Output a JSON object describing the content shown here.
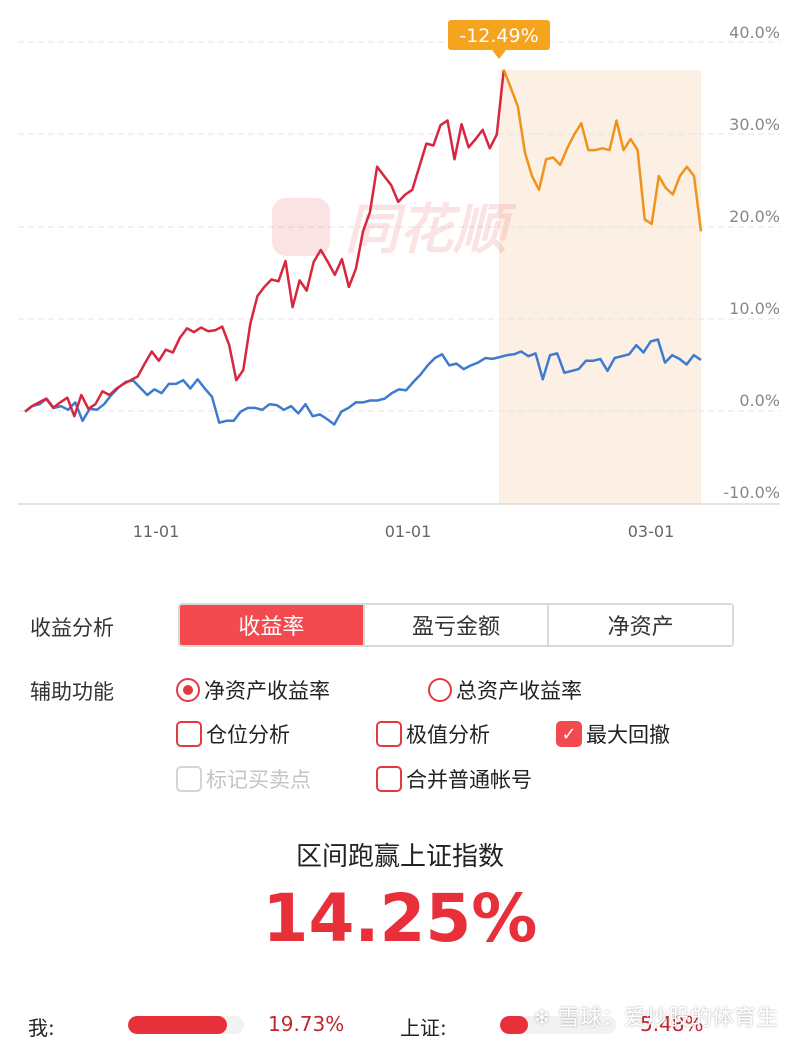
{
  "chart_data": {
    "type": "line",
    "watermark": "同花顺",
    "y_ticks": [
      "40.0%",
      "30.0%",
      "20.0%",
      "10.0%",
      "0.0%",
      "-10.0%"
    ],
    "ylim": [
      -10,
      40
    ],
    "x_ticks": [
      "11-01",
      "01-01",
      "03-01"
    ],
    "drawdown_badge": "-12.49%",
    "series": [
      {
        "color": "#d7263d",
        "values": [
          0.0,
          0.6,
          1.0,
          1.4,
          0.4,
          1.0,
          1.5,
          -0.5,
          1.8,
          0.3,
          0.8,
          2.2,
          1.8,
          2.5,
          3.0,
          3.4,
          3.8,
          5.2,
          6.5,
          5.5,
          6.7,
          6.4,
          8.0,
          9.0,
          8.6,
          9.1,
          8.7,
          8.8,
          9.2,
          7.2,
          3.4,
          4.5,
          9.5,
          12.5,
          13.5,
          14.3,
          14.1,
          16.3,
          11.3,
          14.2,
          13.1,
          16.2,
          17.5,
          16.2,
          14.8,
          16.5,
          13.5,
          15.5,
          19.5,
          21.6,
          26.5,
          25.5,
          24.5,
          22.7,
          23.5,
          24.0,
          26.5,
          29.0,
          28.8,
          31.0,
          31.5,
          27.3,
          31.1,
          28.6,
          29.5,
          30.5,
          28.5,
          30.0,
          37.0,
          35.0,
          33.0,
          28.0,
          25.5,
          24.0,
          27.3,
          27.5,
          26.7,
          28.5,
          30.0,
          31.2,
          28.3,
          28.3,
          28.5,
          28.3,
          31.5,
          28.3,
          29.5,
          28.3,
          20.8,
          20.3,
          25.5,
          24.2,
          23.5,
          25.5,
          26.5,
          25.5,
          19.5
        ]
      },
      {
        "color": "#3e7bd0",
        "values": [
          0.0,
          0.6,
          0.8,
          1.4,
          0.4,
          0.6,
          0.2,
          1.0,
          -1.0,
          0.3,
          0.2,
          0.8,
          1.8,
          2.6,
          3.2,
          3.4,
          2.6,
          1.8,
          2.4,
          2.0,
          3.0,
          3.0,
          3.4,
          2.5,
          3.5,
          2.5,
          1.6,
          -1.2,
          -1.0,
          -1.0,
          0.0,
          0.4,
          0.4,
          0.2,
          0.8,
          0.7,
          0.2,
          0.6,
          -0.2,
          0.8,
          -0.5,
          -0.3,
          -0.8,
          -1.4,
          0.0,
          0.4,
          1.0,
          1.0,
          1.2,
          1.2,
          1.4,
          2.0,
          2.4,
          2.3,
          3.2,
          4.0,
          5.0,
          5.8,
          6.2,
          5.0,
          5.2,
          4.6,
          5.0,
          5.3,
          5.8,
          5.7,
          5.9,
          6.1,
          6.2,
          6.5,
          6.0,
          6.3,
          3.5,
          6.1,
          6.3,
          4.2,
          4.4,
          4.6,
          5.5,
          5.5,
          5.7,
          4.4,
          5.8,
          6.0,
          6.2,
          7.2,
          6.4,
          7.6,
          7.8,
          5.3,
          6.1,
          5.7,
          5.1,
          6.1,
          5.6
        ]
      }
    ]
  },
  "controls": {
    "section_label": "收益分析",
    "tabs": [
      "收益率",
      "盈亏金额",
      "净资产"
    ],
    "aux_label": "辅助功能",
    "radio_net": "净资产收益率",
    "radio_total": "总资产收益率",
    "check_position": "仓位分析",
    "check_extreme": "极值分析",
    "check_drawdown": "最大回撤",
    "check_mark": "标记买卖点",
    "check_merge": "合并普通帐号"
  },
  "compare": {
    "title": "区间跑赢上证指数",
    "value": "14.25%",
    "me_label": "我:",
    "me_value": "19.73%",
    "me_fill_pct": 85,
    "index_label": "上证:",
    "index_value": "5.48%",
    "index_fill_pct": 24
  },
  "watermark_text": "❄ 雪球：爱炒股的体育生"
}
